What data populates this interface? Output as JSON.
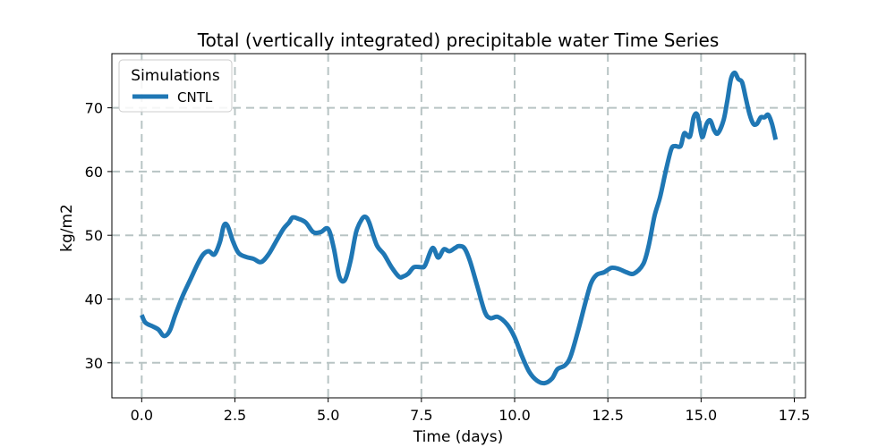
{
  "chart_data": {
    "type": "line",
    "title": "Total (vertically integrated) precipitable water Time Series",
    "xlabel": "Time (days)",
    "ylabel": "kg/m2",
    "xlim": [
      -0.8,
      17.8
    ],
    "ylim": [
      24.5,
      78.5
    ],
    "xticks": [
      0.0,
      2.5,
      5.0,
      7.5,
      10.0,
      12.5,
      15.0,
      17.5
    ],
    "xtick_labels": [
      "0.0",
      "2.5",
      "5.0",
      "7.5",
      "10.0",
      "12.5",
      "15.0",
      "17.5"
    ],
    "yticks": [
      30,
      40,
      50,
      60,
      70
    ],
    "ytick_labels": [
      "30",
      "40",
      "50",
      "60",
      "70"
    ],
    "grid": true,
    "legend": {
      "title": "Simulations",
      "placement": "top-left"
    },
    "series": [
      {
        "name": "CNTL",
        "color": "#1f77b4",
        "x": [
          0.0,
          0.1,
          0.3,
          0.45,
          0.6,
          0.75,
          0.9,
          1.1,
          1.3,
          1.5,
          1.65,
          1.8,
          1.95,
          2.1,
          2.2,
          2.3,
          2.45,
          2.6,
          2.8,
          3.0,
          3.2,
          3.4,
          3.6,
          3.8,
          3.95,
          4.05,
          4.2,
          4.4,
          4.6,
          4.8,
          5.0,
          5.15,
          5.3,
          5.45,
          5.6,
          5.75,
          5.9,
          6.0,
          6.1,
          6.3,
          6.5,
          6.7,
          6.9,
          7.0,
          7.15,
          7.3,
          7.5,
          7.6,
          7.8,
          7.95,
          8.1,
          8.25,
          8.4,
          8.5,
          8.65,
          8.8,
          9.0,
          9.2,
          9.35,
          9.55,
          9.8,
          10.0,
          10.2,
          10.4,
          10.6,
          10.8,
          11.0,
          11.15,
          11.35,
          11.5,
          11.7,
          11.9,
          12.05,
          12.2,
          12.4,
          12.6,
          12.8,
          13.0,
          13.2,
          13.45,
          13.6,
          13.75,
          13.9,
          14.05,
          14.2,
          14.3,
          14.45,
          14.55,
          14.7,
          14.8,
          14.9,
          15.0,
          15.05,
          15.15,
          15.25,
          15.35,
          15.45,
          15.6,
          15.7,
          15.8,
          15.9,
          16.0,
          16.1,
          16.2,
          16.3,
          16.4,
          16.5,
          16.6,
          16.7,
          16.8,
          16.9,
          17.0
        ],
        "values": [
          37.5,
          36.3,
          35.7,
          35.2,
          34.2,
          35.0,
          37.5,
          40.5,
          43.0,
          45.5,
          47.0,
          47.5,
          47.0,
          49.0,
          51.5,
          51.5,
          49.0,
          47.2,
          46.6,
          46.3,
          45.8,
          47.0,
          49.0,
          51.0,
          52.0,
          52.8,
          52.6,
          52.0,
          50.5,
          50.5,
          51.0,
          48.0,
          43.5,
          43.0,
          46.0,
          50.5,
          52.5,
          52.9,
          52.0,
          48.5,
          47.0,
          45.0,
          43.5,
          43.5,
          44.0,
          45.0,
          45.0,
          45.3,
          48.0,
          46.5,
          47.8,
          47.5,
          48.0,
          48.3,
          48.0,
          46.0,
          42.0,
          38.0,
          37.0,
          37.2,
          36.0,
          34.0,
          31.0,
          28.5,
          27.2,
          26.8,
          27.5,
          29.0,
          29.6,
          31.0,
          35.0,
          39.5,
          42.5,
          43.8,
          44.2,
          44.9,
          44.7,
          44.2,
          44.0,
          45.5,
          48.5,
          53.0,
          56.0,
          60.0,
          63.5,
          64.0,
          64.0,
          66.0,
          65.5,
          68.5,
          68.9,
          66.0,
          65.5,
          67.5,
          68.0,
          66.5,
          66.0,
          68.0,
          71.0,
          74.5,
          75.5,
          74.5,
          74.0,
          71.5,
          69.0,
          67.5,
          67.5,
          68.5,
          68.5,
          68.9,
          67.5,
          65.0
        ]
      }
    ]
  }
}
